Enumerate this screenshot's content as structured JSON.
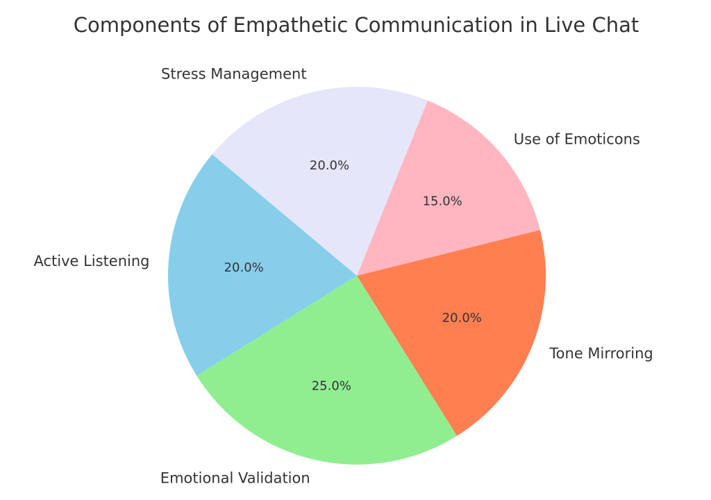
{
  "chart_data": {
    "type": "pie",
    "title": "Components of Empathetic Communication in Live Chat",
    "categories": [
      "Active Listening",
      "Emotional Validation",
      "Tone Mirroring",
      "Use of Emoticons",
      "Stress Management"
    ],
    "values": [
      20,
      25,
      20,
      15,
      20
    ],
    "value_labels": [
      "20.0%",
      "25.0%",
      "20.0%",
      "15.0%",
      "20.0%"
    ],
    "colors": [
      "#87ceeb",
      "#90ee90",
      "#ff7f50",
      "#ffb6c1",
      "#e6e6fa"
    ],
    "start_angle_deg": 140,
    "direction": "counterclockwise",
    "legend": "none"
  }
}
